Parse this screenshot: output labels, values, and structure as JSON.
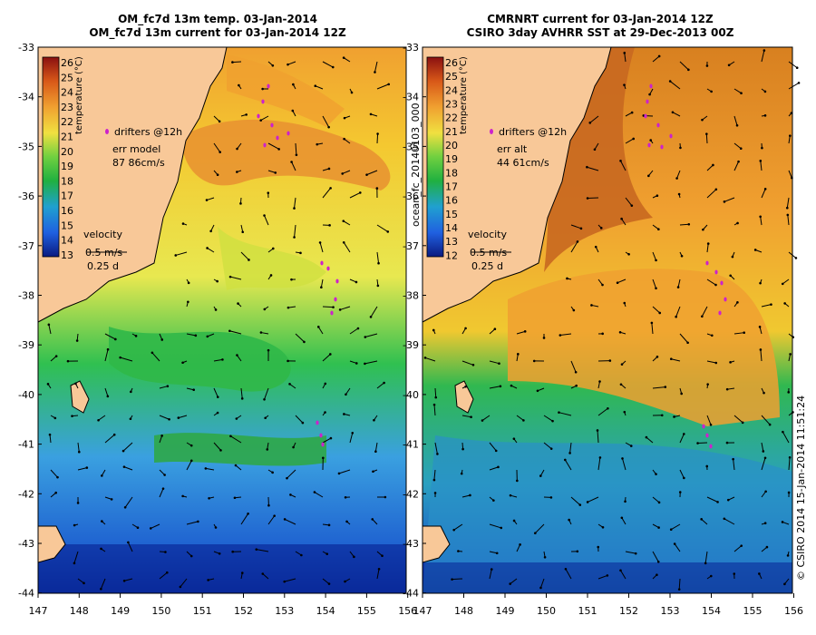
{
  "panels": [
    {
      "title_line1": "OM_fc7d 13m temp. 03-Jan-2014",
      "title_line2": "OM_fc7d 13m current for 03-Jan-2014 12Z",
      "colorbar_ticks": [
        "26",
        "25",
        "24",
        "23",
        "22",
        "21",
        "20",
        "19",
        "18",
        "17",
        "16",
        "15",
        "14",
        "13"
      ],
      "colorbar_label": "temperature (°C)",
      "drifters_label": "drifters @12h",
      "err_label": "err model",
      "err_value": "87 86cm/s",
      "velocity_label": "velocity",
      "velocity_speed": "0.5 m/s",
      "velocity_time": "0.25 d"
    },
    {
      "title_line1": "CMRNRT current for 03-Jan-2014 12Z",
      "title_line2": "CSIRO 3day AVHRR SST at 29-Dec-2013 00Z",
      "colorbar_ticks": [
        "26",
        "25",
        "24",
        "23",
        "22",
        "21",
        "20",
        "19",
        "18",
        "17",
        "16",
        "15",
        "14",
        "13",
        "12"
      ],
      "colorbar_label": "temperature (°C)",
      "drifters_label": "drifters @12h",
      "err_label": "err alt",
      "err_value": "44 61cm/s",
      "velocity_label": "velocity",
      "velocity_speed": "0.5 m/s",
      "velocity_time": "0.25 d"
    }
  ],
  "lat_ticks": [
    "-33",
    "-34",
    "-35",
    "-36",
    "-37",
    "-38",
    "-39",
    "-40",
    "-41",
    "-42",
    "-43",
    "-44"
  ],
  "lon_ticks": [
    "147",
    "148",
    "149",
    "150",
    "151",
    "152",
    "153",
    "154",
    "155",
    "156"
  ],
  "side_label": "ocean_fc_20140103_000",
  "credit": "© CSIRO 2014  15-Jan-2014 11:51:24",
  "colors": {
    "land": "#f8c898",
    "cold": "#0a2a9a",
    "cool": "#2e8ce8",
    "mid": "#28b84a",
    "warm": "#f0e040",
    "hot": "#e07818",
    "drifter": "#cc22cc"
  }
}
